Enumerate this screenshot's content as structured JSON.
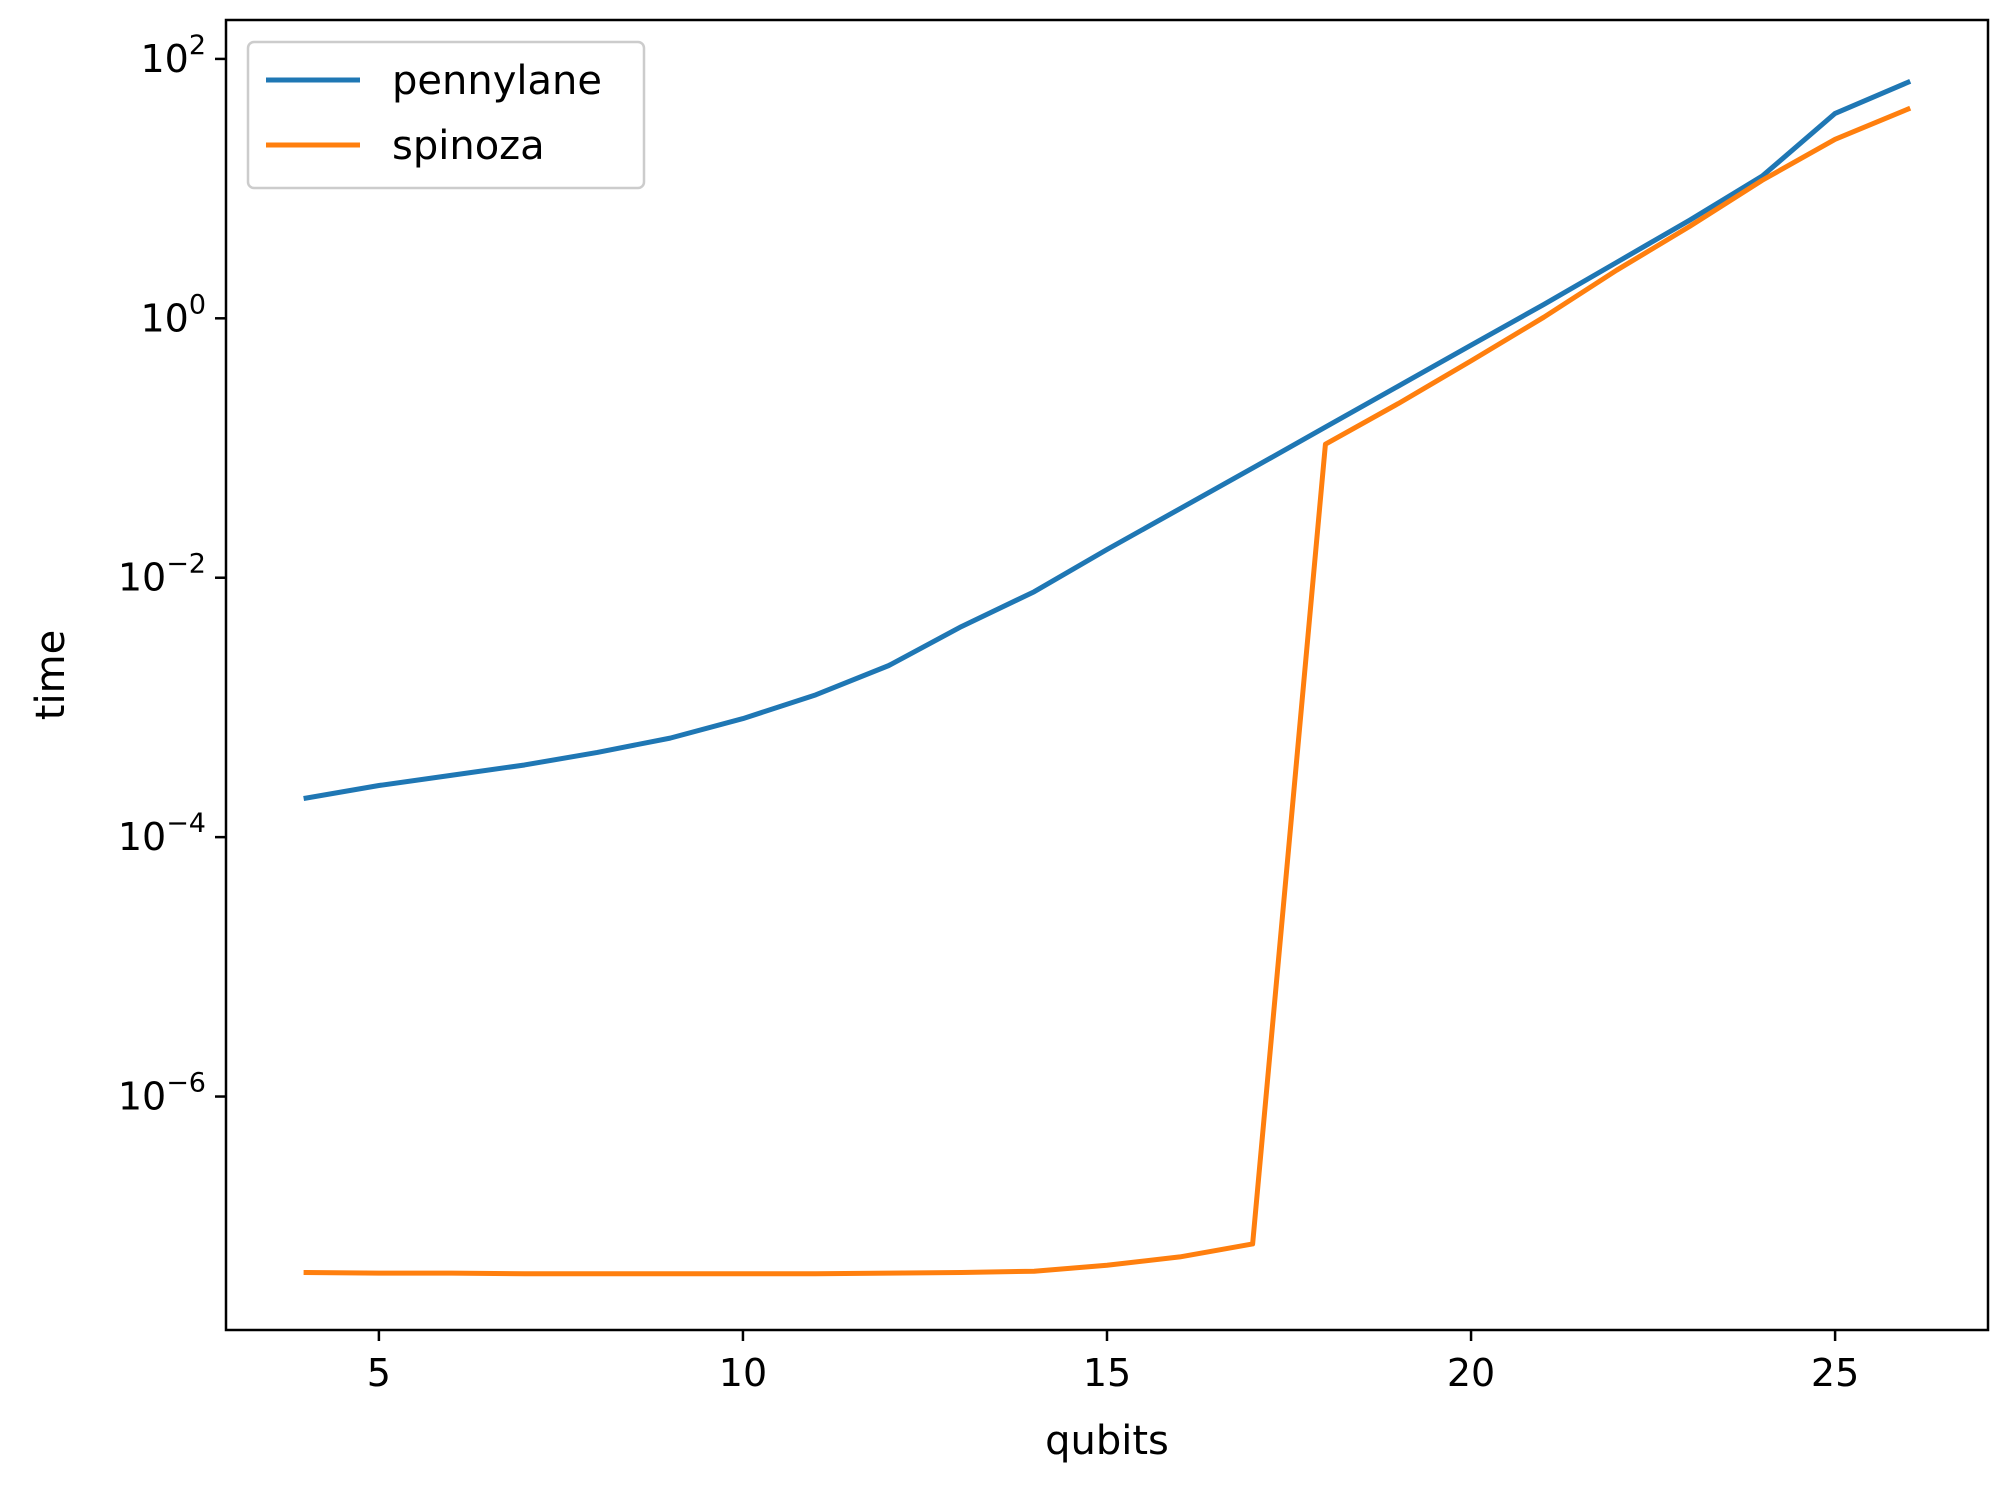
{
  "chart_data": {
    "type": "line",
    "title": "",
    "xlabel": "qubits",
    "ylabel": "time",
    "x_scale": "linear",
    "y_scale": "log",
    "xlim": [
      2.9,
      27.1
    ],
    "ylim_exponents": [
      -7.8,
      0.3
    ],
    "ylim_log10": [
      -7.8,
      2.3
    ],
    "xticks": [
      {
        "value": 5,
        "label": "5"
      },
      {
        "value": 10,
        "label": "10"
      },
      {
        "value": 15,
        "label": "15"
      },
      {
        "value": 20,
        "label": "20"
      },
      {
        "value": 25,
        "label": "25"
      }
    ],
    "yticks": [
      {
        "exp": 2,
        "base": "10",
        "sup": "2"
      },
      {
        "exp": 0,
        "base": "10",
        "sup": "0"
      },
      {
        "exp": -2,
        "base": "10",
        "sup": "−2"
      },
      {
        "exp": -4,
        "base": "10",
        "sup": "−4"
      },
      {
        "exp": -6,
        "base": "10",
        "sup": "−6"
      }
    ],
    "grid": false,
    "legend_position": "top-left",
    "x": [
      4,
      5,
      6,
      7,
      8,
      9,
      10,
      11,
      12,
      13,
      14,
      15,
      16,
      17,
      18,
      19,
      20,
      21,
      22,
      23,
      24,
      25,
      26
    ],
    "series": [
      {
        "name": "pennylane",
        "color": "#1f77b4",
        "values": [
          0.0002,
          0.00025,
          0.0003,
          0.00036,
          0.00045,
          0.00058,
          0.00082,
          0.00125,
          0.0021,
          0.0042,
          0.0078,
          0.0165,
          0.034,
          0.07,
          0.145,
          0.3,
          0.62,
          1.28,
          2.7,
          5.7,
          12.5,
          38,
          66
        ]
      },
      {
        "name": "spinoza",
        "color": "#ff7f0e",
        "values": [
          4.4e-08,
          4.35e-08,
          4.35e-08,
          4.3e-08,
          4.3e-08,
          4.3e-08,
          4.3e-08,
          4.3e-08,
          4.35e-08,
          4.4e-08,
          4.5e-08,
          5e-08,
          5.8e-08,
          7.3e-08,
          0.107,
          0.22,
          0.47,
          1.02,
          2.35,
          5.1,
          11.6,
          24,
          41
        ]
      }
    ]
  }
}
